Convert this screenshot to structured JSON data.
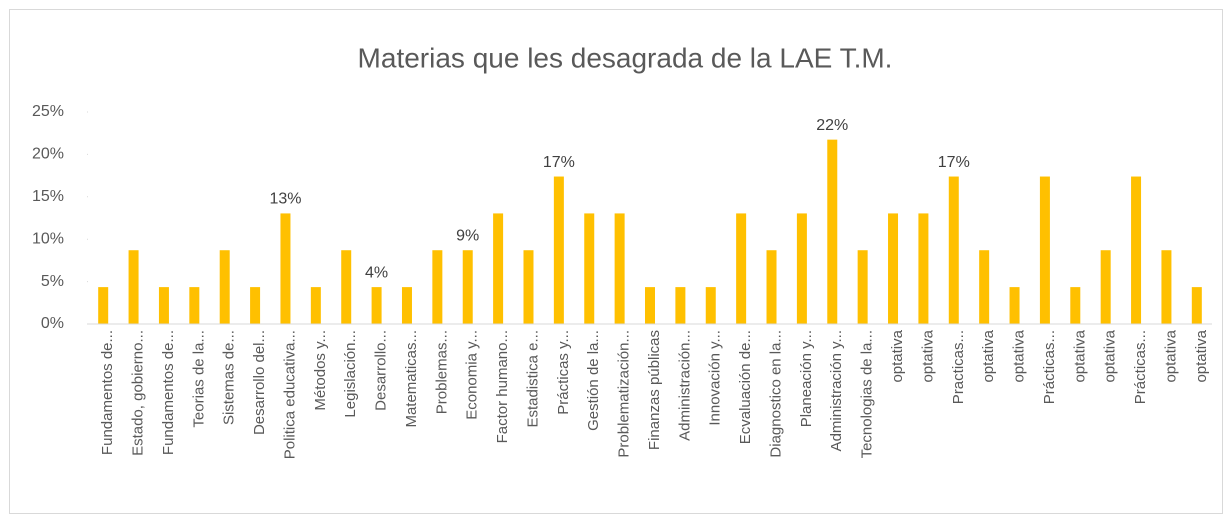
{
  "chart_data": {
    "type": "bar",
    "title": "Materias que les desagrada de la LAE T.M.",
    "categories": [
      "Fundamentos de...",
      "Estado, gobierno...",
      "Fundamentos de...",
      "Teorias de la...",
      "Sistemas de...",
      "Desarrollo del...",
      "Politica educativa...",
      "Métodos y...",
      "Legislación...",
      "Desarrollo...",
      "Matematicas...",
      "Problemas...",
      "Economia y...",
      "Factor humano...",
      "Estadistica e...",
      "Prácticas y...",
      "Gestión de la...",
      "Problematización...",
      "Finanzas públicas",
      "Administración...",
      "Innovación y...",
      "Ecvaluación de...",
      "Diagnostico en la...",
      "Planeación y...",
      "Administración y...",
      "Tecnologias de la...",
      "optativa",
      "optativa",
      "Practicas...",
      "optativa",
      "optativa",
      "Prácticas...",
      "optativa",
      "optativa",
      "Prácticas...",
      "optativa",
      "optativa"
    ],
    "values": [
      4.35,
      8.7,
      4.35,
      4.35,
      8.7,
      4.35,
      13.04,
      4.35,
      8.7,
      4.35,
      4.35,
      8.7,
      8.7,
      13.04,
      8.7,
      17.39,
      13.04,
      13.04,
      4.35,
      4.35,
      4.35,
      13.04,
      8.7,
      13.04,
      21.74,
      8.7,
      13.04,
      13.04,
      17.39,
      8.7,
      4.35,
      17.39,
      4.35,
      8.7,
      17.39,
      8.7,
      4.35
    ],
    "value_labels": [
      null,
      null,
      null,
      null,
      null,
      null,
      "13%",
      null,
      null,
      "4%",
      null,
      null,
      "9%",
      null,
      null,
      "17%",
      null,
      null,
      null,
      null,
      null,
      null,
      null,
      null,
      "22%",
      null,
      null,
      null,
      "17%",
      null,
      null,
      null,
      null,
      null,
      null,
      null,
      null
    ],
    "color": "#ffc000",
    "ylim": [
      0,
      25
    ],
    "yticks": [
      {
        "value": 0,
        "label": "0%"
      },
      {
        "value": 5,
        "label": "5%"
      },
      {
        "value": 10,
        "label": "10%"
      },
      {
        "value": 15,
        "label": "15%"
      },
      {
        "value": 20,
        "label": "20%"
      },
      {
        "value": 25,
        "label": "25%"
      }
    ],
    "grid": false
  }
}
